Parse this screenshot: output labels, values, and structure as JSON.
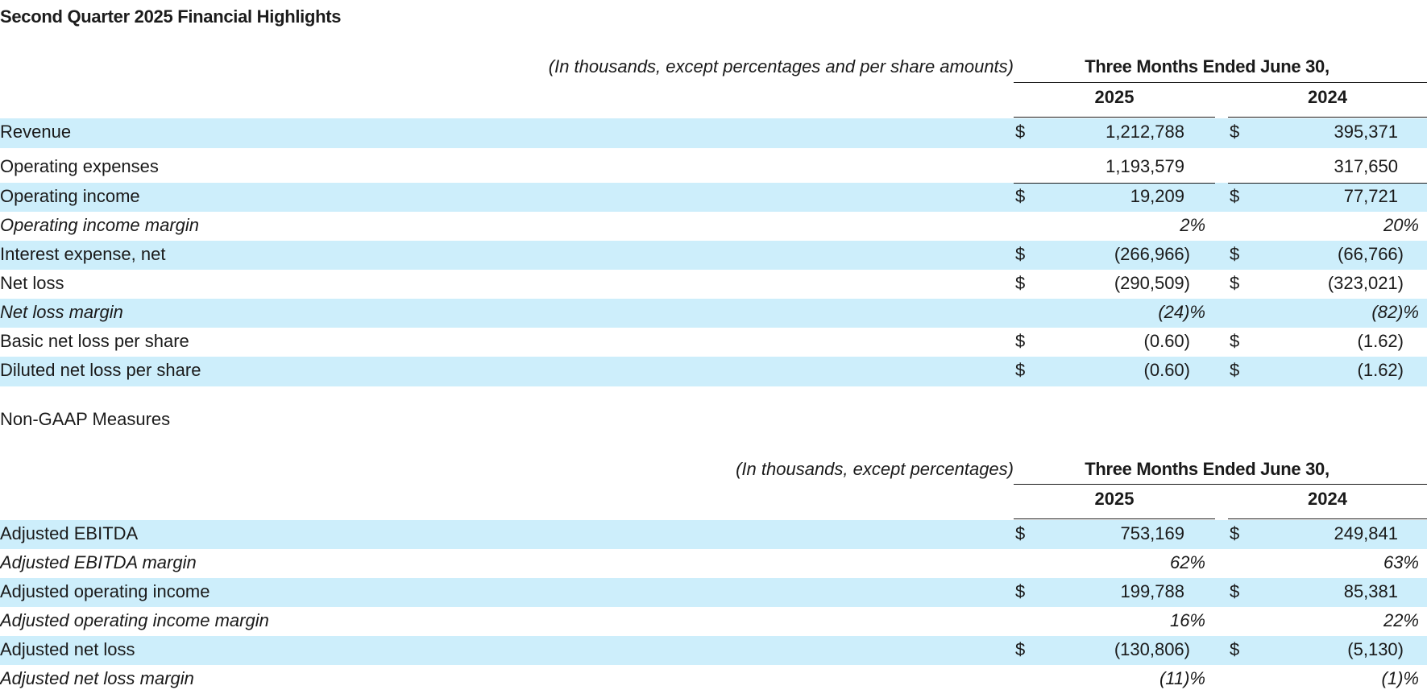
{
  "title": "Second Quarter 2025 Financial Highlights",
  "gaap": {
    "units": "(In thousands, except percentages and per share amounts)",
    "period": "Three Months Ended June 30,",
    "years": [
      "2025",
      "2024"
    ],
    "rows": [
      {
        "label": "Revenue",
        "dollar": true,
        "v2025": "1,212,788",
        "v2024": "395,371",
        "style": "normal",
        "shade": true
      },
      {
        "label": "Operating expenses",
        "dollar": false,
        "v2025": "1,193,579",
        "v2024": "317,650",
        "style": "normal",
        "shade": false
      },
      {
        "label": "Operating income",
        "dollar": true,
        "v2025": "19,209",
        "v2024": "77,721",
        "style": "normal",
        "shade": true
      },
      {
        "label": "Operating income margin",
        "dollar": false,
        "v2025": "2%",
        "v2024": "20%",
        "style": "italic",
        "shade": false
      },
      {
        "label": "Interest expense, net",
        "dollar": true,
        "v2025": "(266,966)",
        "v2024": "(66,766)",
        "style": "normal",
        "shade": true
      },
      {
        "label": "Net loss",
        "dollar": true,
        "v2025": "(290,509)",
        "v2024": "(323,021)",
        "style": "normal",
        "shade": false
      },
      {
        "label": "Net loss margin",
        "dollar": false,
        "v2025": "(24)%",
        "v2024": "(82)%",
        "style": "italic",
        "shade": true
      },
      {
        "label": "Basic net loss per share",
        "dollar": true,
        "v2025": "(0.60)",
        "v2024": "(1.62)",
        "style": "normal",
        "shade": false
      },
      {
        "label": "Diluted net loss per share",
        "dollar": true,
        "v2025": "(0.60)",
        "v2024": "(1.62)",
        "style": "normal",
        "shade": true
      }
    ]
  },
  "nongaap": {
    "heading": "Non-GAAP Measures",
    "units": "(In thousands, except percentages)",
    "period": "Three Months Ended June 30,",
    "years": [
      "2025",
      "2024"
    ],
    "rows": [
      {
        "label": "Adjusted EBITDA",
        "dollar": true,
        "v2025": "753,169",
        "v2024": "249,841",
        "style": "normal",
        "shade": true
      },
      {
        "label": "Adjusted EBITDA margin",
        "dollar": false,
        "v2025": "62%",
        "v2024": "63%",
        "style": "italic",
        "shade": false
      },
      {
        "label": "Adjusted operating income",
        "dollar": true,
        "v2025": "199,788",
        "v2024": "85,381",
        "style": "normal",
        "shade": true
      },
      {
        "label": "Adjusted operating income margin",
        "dollar": false,
        "v2025": "16%",
        "v2024": "22%",
        "style": "italic",
        "shade": false
      },
      {
        "label": "Adjusted net loss",
        "dollar": true,
        "v2025": "(130,806)",
        "v2024": "(5,130)",
        "style": "normal",
        "shade": true
      },
      {
        "label": "Adjusted net loss margin",
        "dollar": false,
        "v2025": "(11)%",
        "v2024": "(1)%",
        "style": "italic",
        "shade": false
      }
    ]
  }
}
